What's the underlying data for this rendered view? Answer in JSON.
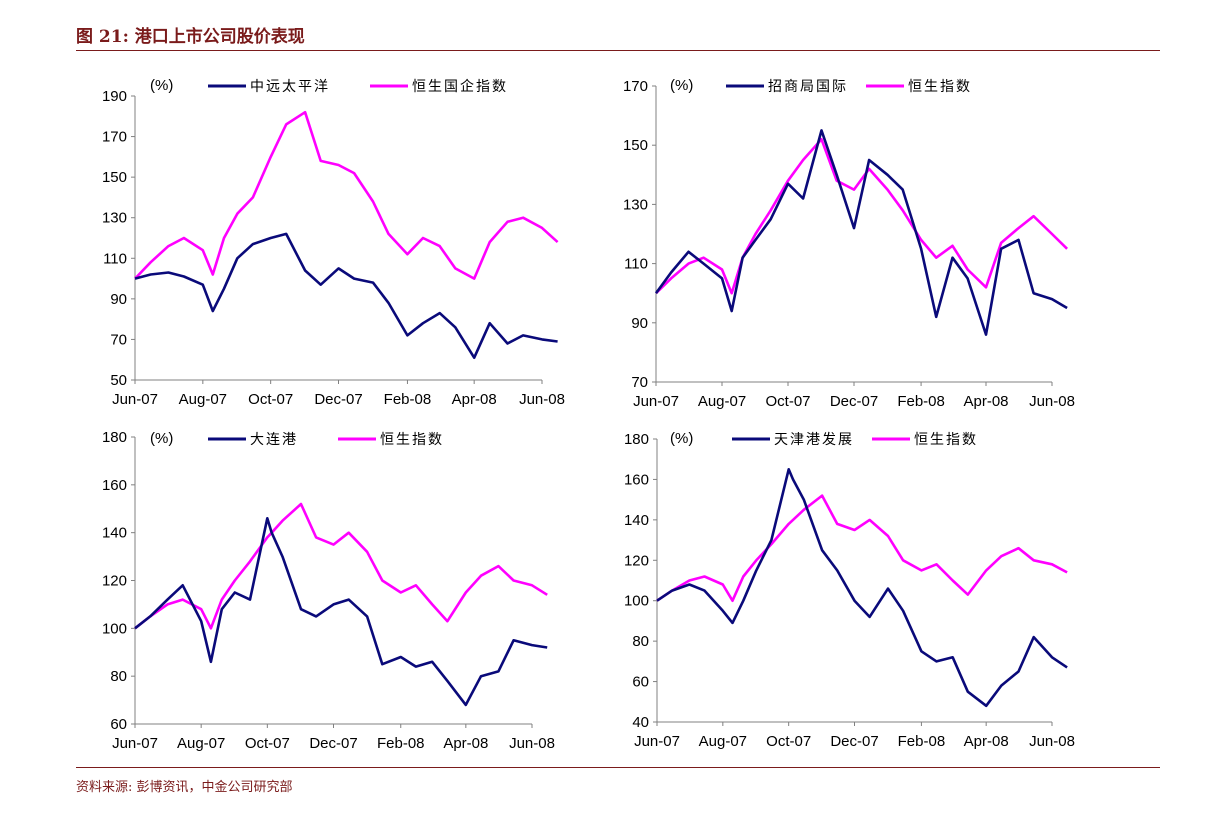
{
  "page": {
    "title": "图 21:  港口上市公司股价表现",
    "source": "资料来源:    彭博资讯，中金公司研究部"
  },
  "colors": {
    "navy": "#0a0a7a",
    "magenta": "#ff00ff",
    "brand": "#7a1b1b"
  },
  "chart_data": [
    {
      "type": "line",
      "ylabel": "(%)",
      "ylim": [
        50,
        190
      ],
      "yticks": [
        50,
        70,
        90,
        110,
        130,
        150,
        170,
        190
      ],
      "x_tick_labels": [
        "Jun-07",
        "Aug-07",
        "Oct-07",
        "Dec-07",
        "Feb-08",
        "Apr-08",
        "Jun-08"
      ],
      "x_tick_dates": [
        "2007-06",
        "2007-08",
        "2007-10",
        "2007-12",
        "2008-02",
        "2008-04",
        "2008-06"
      ],
      "legend_position": "top",
      "series": [
        {
          "name": "中远太平洋",
          "color": "#0a0a7a",
          "x": [
            "2007-06-01",
            "2007-06-15",
            "2007-07-01",
            "2007-07-15",
            "2007-08-01",
            "2007-08-10",
            "2007-08-20",
            "2007-09-01",
            "2007-09-15",
            "2007-10-01",
            "2007-10-15",
            "2007-11-01",
            "2007-11-15",
            "2007-12-01",
            "2007-12-15",
            "2008-01-01",
            "2008-01-15",
            "2008-02-01",
            "2008-02-15",
            "2008-03-01",
            "2008-03-15",
            "2008-04-01",
            "2008-04-15",
            "2008-05-01",
            "2008-05-15",
            "2008-06-01",
            "2008-06-15"
          ],
          "values": [
            100,
            102,
            103,
            101,
            97,
            84,
            95,
            110,
            117,
            120,
            122,
            104,
            97,
            105,
            100,
            98,
            88,
            72,
            78,
            83,
            76,
            61,
            78,
            68,
            72,
            70,
            69
          ]
        },
        {
          "name": "恒生国企指数",
          "color": "#ff00ff",
          "x": [
            "2007-06-01",
            "2007-06-15",
            "2007-07-01",
            "2007-07-15",
            "2007-08-01",
            "2007-08-10",
            "2007-08-20",
            "2007-09-01",
            "2007-09-15",
            "2007-10-01",
            "2007-10-15",
            "2007-11-01",
            "2007-11-15",
            "2007-12-01",
            "2007-12-15",
            "2008-01-01",
            "2008-01-15",
            "2008-02-01",
            "2008-02-15",
            "2008-03-01",
            "2008-03-15",
            "2008-04-01",
            "2008-04-15",
            "2008-05-01",
            "2008-05-15",
            "2008-06-01",
            "2008-06-15"
          ],
          "values": [
            100,
            108,
            116,
            120,
            114,
            102,
            120,
            132,
            140,
            160,
            176,
            182,
            158,
            156,
            152,
            138,
            122,
            112,
            120,
            116,
            105,
            100,
            118,
            128,
            130,
            125,
            118
          ]
        }
      ]
    },
    {
      "type": "line",
      "ylabel": "(%)",
      "ylim": [
        70,
        170
      ],
      "yticks": [
        70,
        90,
        110,
        130,
        150,
        170
      ],
      "x_tick_labels": [
        "Jun-07",
        "Aug-07",
        "Oct-07",
        "Dec-07",
        "Feb-08",
        "Apr-08",
        "Jun-08"
      ],
      "x_tick_dates": [
        "2007-06",
        "2007-08",
        "2007-10",
        "2007-12",
        "2008-02",
        "2008-04",
        "2008-06"
      ],
      "legend_position": "top",
      "series": [
        {
          "name": "招商局国际",
          "color": "#0a0a7a",
          "x": [
            "2007-06-01",
            "2007-06-15",
            "2007-07-01",
            "2007-07-15",
            "2007-08-01",
            "2007-08-10",
            "2007-08-20",
            "2007-09-01",
            "2007-09-15",
            "2007-10-01",
            "2007-10-15",
            "2007-11-01",
            "2007-11-15",
            "2007-12-01",
            "2007-12-15",
            "2008-01-01",
            "2008-01-15",
            "2008-02-01",
            "2008-02-15",
            "2008-03-01",
            "2008-03-15",
            "2008-04-01",
            "2008-04-15",
            "2008-05-01",
            "2008-05-15",
            "2008-06-01",
            "2008-06-15"
          ],
          "values": [
            100,
            107,
            114,
            110,
            105,
            94,
            112,
            118,
            125,
            137,
            132,
            155,
            140,
            122,
            145,
            140,
            135,
            115,
            92,
            112,
            105,
            86,
            115,
            118,
            100,
            98,
            95
          ]
        },
        {
          "name": "恒生指数",
          "color": "#ff00ff",
          "x": [
            "2007-06-01",
            "2007-06-15",
            "2007-07-01",
            "2007-07-15",
            "2007-08-01",
            "2007-08-10",
            "2007-08-20",
            "2007-09-01",
            "2007-09-15",
            "2007-10-01",
            "2007-10-15",
            "2007-11-01",
            "2007-11-15",
            "2007-12-01",
            "2007-12-15",
            "2008-01-01",
            "2008-01-15",
            "2008-02-01",
            "2008-02-15",
            "2008-03-01",
            "2008-03-15",
            "2008-04-01",
            "2008-04-15",
            "2008-05-01",
            "2008-05-15",
            "2008-06-01",
            "2008-06-15"
          ],
          "values": [
            100,
            105,
            110,
            112,
            108,
            100,
            112,
            120,
            128,
            138,
            145,
            152,
            138,
            135,
            142,
            135,
            128,
            118,
            112,
            116,
            108,
            102,
            117,
            122,
            126,
            120,
            115
          ]
        }
      ]
    },
    {
      "type": "line",
      "ylabel": "(%)",
      "ylim": [
        60,
        180
      ],
      "yticks": [
        60,
        80,
        100,
        120,
        140,
        160,
        180
      ],
      "x_tick_labels": [
        "Jun-07",
        "Aug-07",
        "Oct-07",
        "Dec-07",
        "Feb-08",
        "Apr-08",
        "Jun-08"
      ],
      "x_tick_dates": [
        "2007-06",
        "2007-08",
        "2007-10",
        "2007-12",
        "2008-02",
        "2008-04",
        "2008-06"
      ],
      "legend_position": "top",
      "series": [
        {
          "name": "大连港",
          "color": "#0a0a7a",
          "x": [
            "2007-06-01",
            "2007-06-15",
            "2007-07-01",
            "2007-07-15",
            "2007-08-01",
            "2007-08-10",
            "2007-08-20",
            "2007-09-01",
            "2007-09-15",
            "2007-10-01",
            "2007-10-05",
            "2007-10-15",
            "2007-11-01",
            "2007-11-15",
            "2007-12-01",
            "2007-12-15",
            "2008-01-01",
            "2008-01-15",
            "2008-02-01",
            "2008-02-15",
            "2008-03-01",
            "2008-03-15",
            "2008-04-01",
            "2008-04-15",
            "2008-05-01",
            "2008-05-15",
            "2008-06-01",
            "2008-06-15"
          ],
          "values": [
            100,
            105,
            112,
            118,
            103,
            86,
            108,
            115,
            112,
            146,
            140,
            130,
            108,
            105,
            110,
            112,
            105,
            85,
            88,
            84,
            86,
            78,
            68,
            80,
            82,
            95,
            93,
            92
          ]
        },
        {
          "name": "恒生指数",
          "color": "#ff00ff",
          "x": [
            "2007-06-01",
            "2007-06-15",
            "2007-07-01",
            "2007-07-15",
            "2007-08-01",
            "2007-08-10",
            "2007-08-20",
            "2007-09-01",
            "2007-09-15",
            "2007-10-01",
            "2007-10-05",
            "2007-10-15",
            "2007-11-01",
            "2007-11-15",
            "2007-12-01",
            "2007-12-15",
            "2008-01-01",
            "2008-01-15",
            "2008-02-01",
            "2008-02-15",
            "2008-03-01",
            "2008-03-15",
            "2008-04-01",
            "2008-04-15",
            "2008-05-01",
            "2008-05-15",
            "2008-06-01",
            "2008-06-15"
          ],
          "values": [
            100,
            105,
            110,
            112,
            108,
            100,
            112,
            120,
            128,
            138,
            140,
            145,
            152,
            138,
            135,
            140,
            132,
            120,
            115,
            118,
            110,
            103,
            115,
            122,
            126,
            120,
            118,
            114
          ]
        }
      ]
    },
    {
      "type": "line",
      "ylabel": "(%)",
      "ylim": [
        40,
        180
      ],
      "yticks": [
        40,
        60,
        80,
        100,
        120,
        140,
        160,
        180
      ],
      "x_tick_labels": [
        "Jun-07",
        "Aug-07",
        "Oct-07",
        "Dec-07",
        "Feb-08",
        "Apr-08",
        "Jun-08"
      ],
      "x_tick_dates": [
        "2007-06",
        "2007-08",
        "2007-10",
        "2007-12",
        "2008-02",
        "2008-04",
        "2008-06"
      ],
      "legend_position": "top",
      "series": [
        {
          "name": "天津港发展",
          "color": "#0a0a7a",
          "x": [
            "2007-06-01",
            "2007-06-15",
            "2007-07-01",
            "2007-07-15",
            "2007-08-01",
            "2007-08-10",
            "2007-08-20",
            "2007-09-01",
            "2007-09-15",
            "2007-10-01",
            "2007-10-05",
            "2007-10-15",
            "2007-11-01",
            "2007-11-15",
            "2007-12-01",
            "2007-12-15",
            "2008-01-01",
            "2008-01-15",
            "2008-02-01",
            "2008-02-15",
            "2008-03-01",
            "2008-03-15",
            "2008-04-01",
            "2008-04-15",
            "2008-05-01",
            "2008-05-15",
            "2008-06-01",
            "2008-06-15"
          ],
          "values": [
            100,
            105,
            108,
            105,
            95,
            89,
            100,
            115,
            130,
            165,
            160,
            150,
            125,
            115,
            100,
            92,
            106,
            95,
            75,
            70,
            72,
            55,
            48,
            58,
            65,
            82,
            72,
            67
          ]
        },
        {
          "name": "恒生指数",
          "color": "#ff00ff",
          "x": [
            "2007-06-01",
            "2007-06-15",
            "2007-07-01",
            "2007-07-15",
            "2007-08-01",
            "2007-08-10",
            "2007-08-20",
            "2007-09-01",
            "2007-09-15",
            "2007-10-01",
            "2007-10-05",
            "2007-10-15",
            "2007-11-01",
            "2007-11-15",
            "2007-12-01",
            "2007-12-15",
            "2008-01-01",
            "2008-01-15",
            "2008-02-01",
            "2008-02-15",
            "2008-03-01",
            "2008-03-15",
            "2008-04-01",
            "2008-04-15",
            "2008-05-01",
            "2008-05-15",
            "2008-06-01",
            "2008-06-15"
          ],
          "values": [
            100,
            105,
            110,
            112,
            108,
            100,
            112,
            120,
            128,
            138,
            140,
            145,
            152,
            138,
            135,
            140,
            132,
            120,
            115,
            118,
            110,
            103,
            115,
            122,
            126,
            120,
            118,
            114
          ]
        }
      ]
    }
  ]
}
